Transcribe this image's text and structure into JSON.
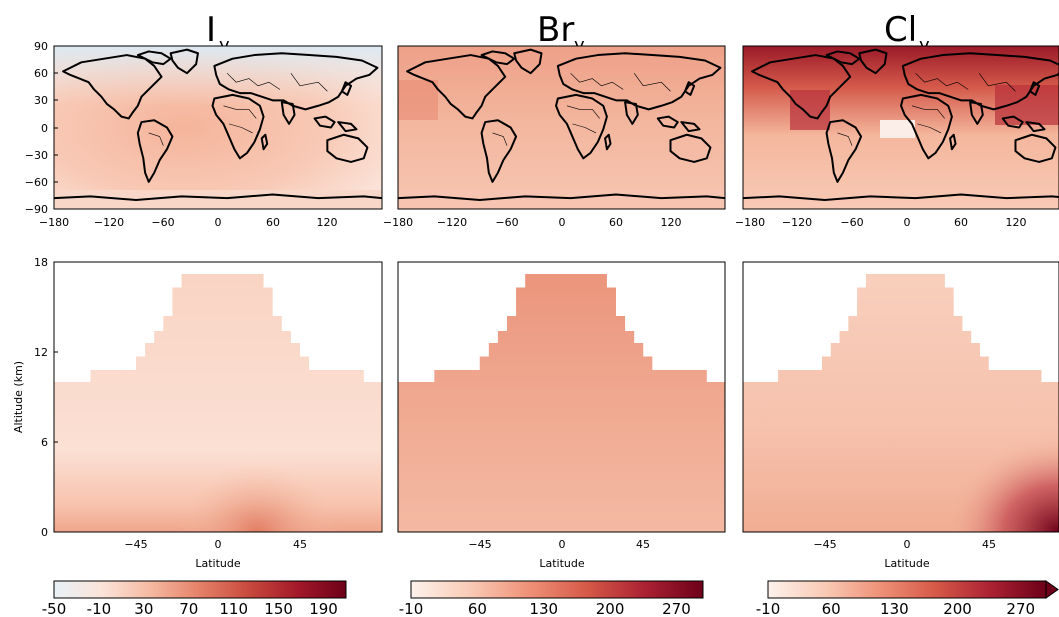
{
  "chart_data": [
    {
      "type": "heatmap",
      "panel": "map",
      "title": "I",
      "title_subscript": "y",
      "xlim": [
        -180,
        180
      ],
      "ylim": [
        -90,
        90
      ],
      "xticks": [
        -180,
        -120,
        -60,
        0,
        60,
        120
      ],
      "yticks": [
        90,
        60,
        30,
        0,
        -30,
        -60,
        -90
      ],
      "xtick_labels": [
        "−180",
        "−120",
        "−60",
        "0",
        "60",
        "120"
      ],
      "ytick_labels": [
        "90",
        "60",
        "30",
        "0",
        "−30",
        "−60",
        "−90"
      ],
      "colorbar_ref": 0
    },
    {
      "type": "heatmap",
      "panel": "map",
      "title": "Br",
      "title_subscript": "y",
      "xlim": [
        -180,
        180
      ],
      "ylim": [
        -90,
        90
      ],
      "xticks": [
        -180,
        -120,
        -60,
        0,
        60,
        120
      ],
      "xtick_labels": [
        "−180",
        "−120",
        "−60",
        "0",
        "60",
        "120"
      ],
      "colorbar_ref": 1
    },
    {
      "type": "heatmap",
      "panel": "map",
      "title": "Cl",
      "title_subscript": "y",
      "xlim": [
        -180,
        180
      ],
      "ylim": [
        -90,
        90
      ],
      "xticks": [
        -180,
        -120,
        -60,
        0,
        60,
        120
      ],
      "xtick_labels": [
        "−180",
        "−120",
        "−60",
        "0",
        "60",
        "120"
      ],
      "colorbar_ref": 2
    },
    {
      "type": "heatmap",
      "panel": "zonal",
      "xlabel": "Latitude",
      "ylabel": "Altitude (km)",
      "xlim": [
        -90,
        90
      ],
      "ylim": [
        0,
        18
      ],
      "xticks": [
        -45,
        0,
        45
      ],
      "xtick_labels": [
        "−45",
        "0",
        "45"
      ],
      "yticks": [
        0,
        6,
        12,
        18
      ],
      "ytick_labels": [
        "0",
        "6",
        "12",
        "18"
      ],
      "tropopause_km_by_latitude": [
        [
          -90,
          10
        ],
        [
          -75,
          10
        ],
        [
          -70,
          10.8
        ],
        [
          -50,
          10.8
        ],
        [
          -45,
          11.7
        ],
        [
          -40,
          12.6
        ],
        [
          -35,
          13.4
        ],
        [
          -30,
          14.4
        ],
        [
          -25,
          16.3
        ],
        [
          -20,
          17.2
        ],
        [
          -15,
          17.2
        ],
        [
          15,
          17.2
        ],
        [
          20,
          17.2
        ],
        [
          25,
          16.3
        ],
        [
          30,
          14.4
        ],
        [
          35,
          13.4
        ],
        [
          40,
          12.6
        ],
        [
          45,
          11.7
        ],
        [
          50,
          10.8
        ],
        [
          75,
          10.8
        ],
        [
          80,
          10
        ],
        [
          90,
          10
        ]
      ],
      "colorbar_ref": 0
    },
    {
      "type": "heatmap",
      "panel": "zonal",
      "xlabel": "Latitude",
      "xlim": [
        -90,
        90
      ],
      "ylim": [
        0,
        18
      ],
      "xticks": [
        -45,
        0,
        45
      ],
      "xtick_labels": [
        "−45",
        "0",
        "45"
      ],
      "colorbar_ref": 1
    },
    {
      "type": "heatmap",
      "panel": "zonal",
      "xlabel": "Latitude",
      "xlim": [
        -90,
        90
      ],
      "ylim": [
        0,
        18
      ],
      "xticks": [
        -45,
        0,
        45
      ],
      "xtick_labels": [
        "−45",
        "0",
        "45"
      ],
      "colorbar_ref": 2
    }
  ],
  "colorbars": [
    {
      "range": [
        -50,
        210
      ],
      "ticks": [
        "-50",
        "-10",
        "30",
        "70",
        "110",
        "150",
        "190"
      ],
      "colors": [
        "#e8f1f7",
        "#fbe3d9",
        "#f5b8a0",
        "#e58068",
        "#c84a3e",
        "#a3192a",
        "#6d0018"
      ],
      "extend": "none"
    },
    {
      "range": [
        -10,
        290
      ],
      "ticks": [
        "-10",
        "60",
        "130",
        "200",
        "270"
      ],
      "colors": [
        "#fdf2ec",
        "#f9cbb6",
        "#ef9279",
        "#d65a48",
        "#ab2233",
        "#6d0018"
      ],
      "extend": "none"
    },
    {
      "range": [
        -10,
        290
      ],
      "ticks": [
        "-10",
        "60",
        "130",
        "200",
        "270"
      ],
      "colors": [
        "#fdf2ec",
        "#f9cbb6",
        "#ef9279",
        "#d65a48",
        "#ab2233",
        "#6d0018"
      ],
      "extend": "max"
    }
  ]
}
